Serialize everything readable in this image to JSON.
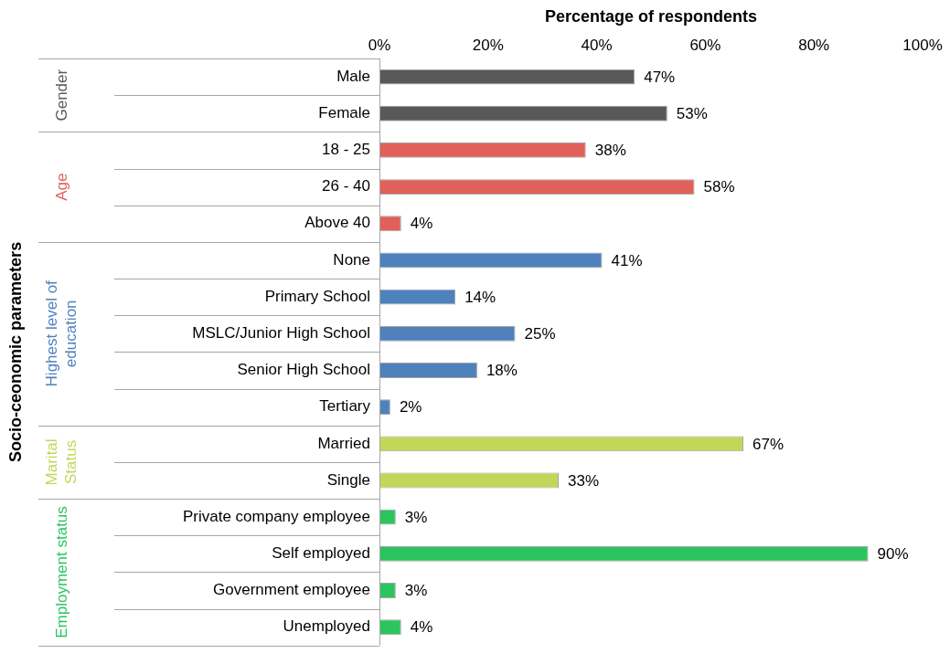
{
  "chart_data": {
    "type": "bar",
    "orientation": "horizontal",
    "xlabel": "Percentage of respondents",
    "annotations": [
      "Socio-ceonomic parameters"
    ],
    "categories": [
      "Male",
      "Female",
      "18 - 25",
      "26 - 40",
      "Above 40",
      "None",
      "Primary School",
      "MSLC/Junior High School",
      "Senior High School",
      "Tertiary",
      "Married",
      "Single",
      "Private company employee",
      "Self employed",
      "Government employee",
      "Unemployed"
    ],
    "xlim": [
      0,
      100
    ],
    "xticks": [
      {
        "value": 0,
        "label": "0%"
      },
      {
        "value": 20,
        "label": "20%"
      },
      {
        "value": 40,
        "label": "40%"
      },
      {
        "value": 60,
        "label": "60%"
      },
      {
        "value": 80,
        "label": "80%"
      },
      {
        "value": 100,
        "label": "100%"
      }
    ],
    "series": [
      {
        "name": "Gender",
        "color": "#595959",
        "values": [
          47,
          53,
          null,
          null,
          null,
          null,
          null,
          null,
          null,
          null,
          null,
          null,
          null,
          null,
          null,
          null
        ],
        "value_labels": [
          "47%",
          "53%",
          null,
          null,
          null,
          null,
          null,
          null,
          null,
          null,
          null,
          null,
          null,
          null,
          null,
          null
        ]
      },
      {
        "name": "Age",
        "color": "#e0605a",
        "values": [
          null,
          null,
          38,
          58,
          4,
          null,
          null,
          null,
          null,
          null,
          null,
          null,
          null,
          null,
          null,
          null
        ],
        "value_labels": [
          null,
          null,
          "38%",
          "58%",
          "4%",
          null,
          null,
          null,
          null,
          null,
          null,
          null,
          null,
          null,
          null,
          null
        ]
      },
      {
        "name": "Highest level of education",
        "color": "#4f81bd",
        "values": [
          null,
          null,
          null,
          null,
          null,
          41,
          14,
          25,
          18,
          2,
          null,
          null,
          null,
          null,
          null,
          null
        ],
        "value_labels": [
          null,
          null,
          null,
          null,
          null,
          "41%",
          "14%",
          "25%",
          "18%",
          "2%",
          null,
          null,
          null,
          null,
          null,
          null
        ]
      },
      {
        "name": "Marital Status",
        "color": "#c4d65a",
        "values": [
          null,
          null,
          null,
          null,
          null,
          null,
          null,
          null,
          null,
          null,
          67,
          33,
          null,
          null,
          null,
          null
        ],
        "value_labels": [
          null,
          null,
          null,
          null,
          null,
          null,
          null,
          null,
          null,
          null,
          "67%",
          "33%",
          null,
          null,
          null,
          null
        ]
      },
      {
        "name": "Employment status",
        "color": "#2cc45e",
        "values": [
          null,
          null,
          null,
          null,
          null,
          null,
          null,
          null,
          null,
          null,
          null,
          null,
          3,
          90,
          3,
          4
        ],
        "value_labels": [
          null,
          null,
          null,
          null,
          null,
          null,
          null,
          null,
          null,
          null,
          null,
          null,
          "3%",
          "90%",
          "3%",
          "4%"
        ]
      }
    ],
    "grid": false,
    "legend": false
  }
}
